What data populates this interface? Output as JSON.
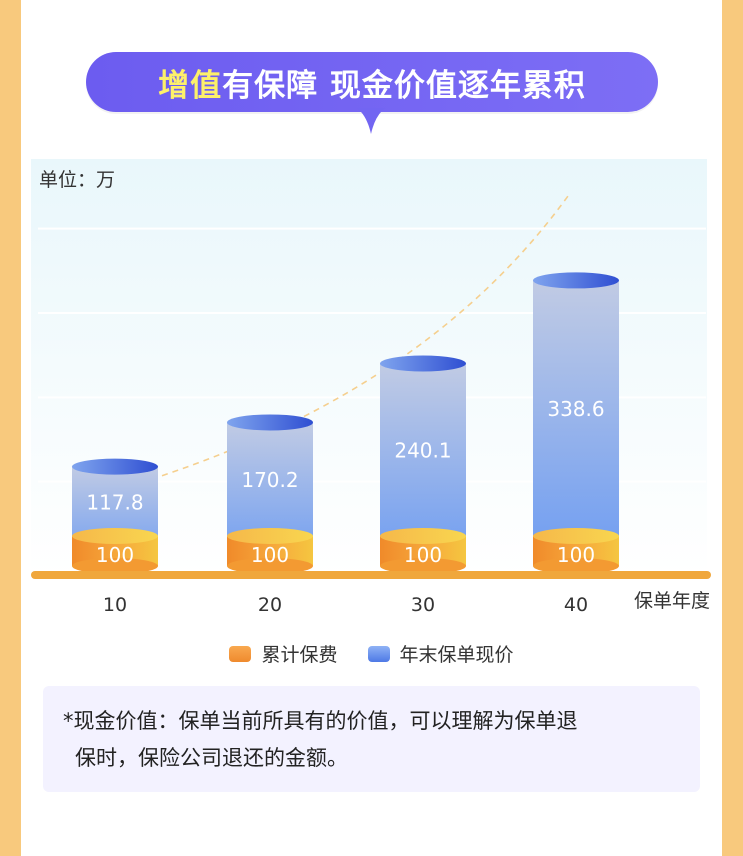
{
  "title": {
    "highlight": "增值",
    "rest": "有保障 现金价值逐年累积"
  },
  "colors": {
    "banner": "#6c5cf0",
    "highlight": "#fdf06a",
    "side_stripe": "#f8c97d",
    "baseline": "#f0a73c",
    "premium_top": "#f6cf4a",
    "premium_body": "#f39a32",
    "value_top": "#4a68e0",
    "value_body": "#8fb0f2",
    "note_bg": "#f3f2ff"
  },
  "chart_data": {
    "type": "bar",
    "unit_label": "单位：万",
    "x_axis_label": "保单年度",
    "categories": [
      "10",
      "20",
      "30",
      "40"
    ],
    "series": [
      {
        "name": "累计保费",
        "values": [
          100,
          100,
          100,
          100
        ]
      },
      {
        "name": "年末保单现价",
        "values": [
          117.8,
          170.2,
          240.1,
          338.6
        ]
      }
    ],
    "ylim": [
      0,
      400
    ],
    "grid": true,
    "trend_line": "dashed",
    "legend_position": "bottom"
  },
  "legend": {
    "items": [
      {
        "label": "累计保费",
        "icon": "orange-swatch"
      },
      {
        "label": "年末保单现价",
        "icon": "blue-swatch"
      }
    ]
  },
  "note": {
    "line1": "*现金价值：保单当前所具有的价值，可以理解为保单退",
    "line2": "保时，保险公司退还的金额。"
  }
}
